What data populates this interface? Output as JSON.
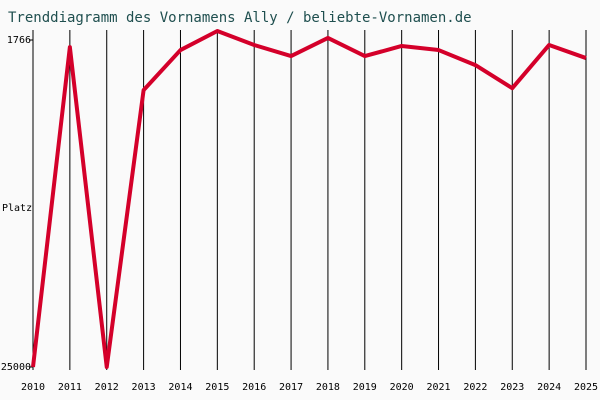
{
  "chart_data": {
    "type": "line",
    "title": "Trenddiagramm des Vornamens Ally / beliebte-Vornamen.de",
    "y_label": "Platz",
    "x": [
      2010,
      2011,
      2012,
      2013,
      2014,
      2015,
      2016,
      2017,
      2018,
      2019,
      2020,
      2021,
      2022,
      2023,
      2024,
      2025
    ],
    "series": [
      {
        "name": "Ally",
        "color": "#d4002a",
        "values": [
          25000,
          2270,
          25000,
          5330,
          2480,
          1125,
          2120,
          2910,
          1620,
          2910,
          2190,
          2480,
          3550,
          5190,
          2120,
          3050
        ]
      }
    ],
    "xlim": [
      2010,
      2025
    ],
    "xticks": [
      2010,
      2011,
      2012,
      2013,
      2014,
      2015,
      2016,
      2017,
      2018,
      2019,
      2020,
      2021,
      2022,
      2023,
      2024,
      2025
    ],
    "ylim": [
      25000,
      1766
    ],
    "yticks": [
      1766,
      25000
    ],
    "grid": true
  }
}
